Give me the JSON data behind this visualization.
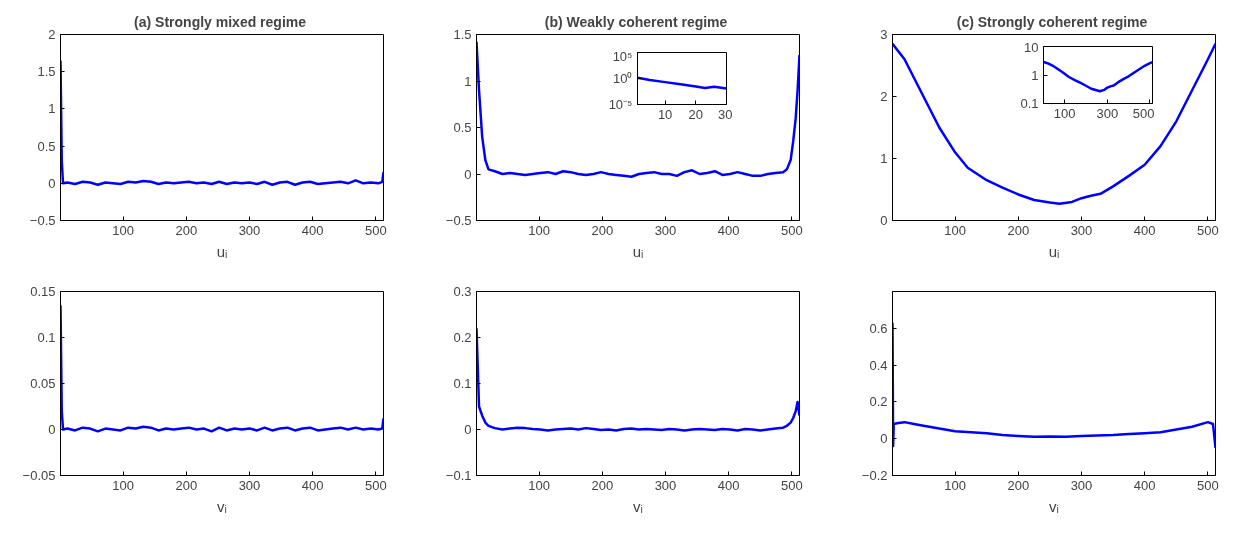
{
  "chart_data": [
    {
      "type": "line",
      "title": "(a)  Strongly mixed regime",
      "xlabel": "uᵢ",
      "xlim": [
        1,
        512
      ],
      "xticks": [
        100,
        200,
        300,
        400,
        500
      ],
      "ylim": [
        -0.5,
        2
      ],
      "yticks": [
        {
          "value": -0.5,
          "label": "−0.5"
        },
        0,
        0.5,
        1,
        1.5,
        2
      ],
      "grid": false,
      "line_style": "solid",
      "series": [
        {
          "color": "#0000ff",
          "x": [
            1,
            3,
            5,
            12,
            24,
            36,
            48,
            60,
            72,
            84,
            96,
            108,
            120,
            132,
            144,
            156,
            168,
            180,
            192,
            204,
            216,
            228,
            240,
            252,
            264,
            276,
            288,
            300,
            312,
            324,
            336,
            348,
            360,
            372,
            384,
            396,
            408,
            420,
            432,
            444,
            456,
            468,
            480,
            492,
            504,
            510,
            512
          ],
          "values": [
            1.65,
            0.3,
            0.0,
            0.01,
            -0.01,
            0.02,
            0.01,
            -0.02,
            0.01,
            0.0,
            -0.01,
            0.02,
            0.01,
            0.03,
            0.02,
            -0.01,
            0.01,
            0.0,
            0.01,
            0.02,
            0.0,
            0.01,
            -0.01,
            0.02,
            -0.01,
            0.01,
            0.0,
            0.01,
            -0.01,
            0.02,
            -0.02,
            0.01,
            0.02,
            -0.02,
            0.01,
            0.02,
            -0.01,
            0.0,
            0.01,
            0.02,
            0.0,
            0.04,
            0.0,
            0.01,
            0.0,
            0.02,
            0.15
          ]
        }
      ]
    },
    {
      "type": "line",
      "title": "(b)  Weakly coherent regime",
      "xlabel": "uᵢ",
      "xlim": [
        1,
        512
      ],
      "xticks": [
        100,
        200,
        300,
        400,
        500
      ],
      "ylim": [
        -0.5,
        1.5
      ],
      "yticks": [
        {
          "value": -0.5,
          "label": "−0.5"
        },
        0,
        0.5,
        1,
        1.5
      ],
      "grid": false,
      "line_style": "solid",
      "series": [
        {
          "color": "#0000ff",
          "x": [
            1,
            5,
            10,
            15,
            20,
            30,
            42,
            54,
            66,
            78,
            90,
            102,
            114,
            126,
            138,
            150,
            162,
            174,
            186,
            198,
            210,
            222,
            234,
            246,
            258,
            270,
            282,
            294,
            306,
            318,
            330,
            342,
            354,
            366,
            378,
            390,
            402,
            414,
            426,
            438,
            450,
            462,
            474,
            486,
            492,
            498,
            502,
            506,
            509,
            512
          ],
          "values": [
            1.42,
            0.9,
            0.4,
            0.15,
            0.05,
            0.03,
            0.0,
            0.01,
            0.0,
            -0.01,
            0.0,
            0.01,
            0.02,
            0.0,
            0.03,
            0.02,
            0.0,
            -0.01,
            0.0,
            0.02,
            0.0,
            -0.01,
            -0.02,
            -0.03,
            0.0,
            0.01,
            0.02,
            0.0,
            0.0,
            -0.02,
            0.02,
            0.04,
            0.0,
            0.01,
            0.03,
            -0.01,
            0.0,
            0.02,
            0.0,
            -0.02,
            -0.02,
            0.0,
            0.01,
            0.02,
            0.05,
            0.15,
            0.35,
            0.6,
            0.9,
            1.28
          ]
        }
      ]
    },
    {
      "type": "line",
      "xlim": [
        1,
        30
      ],
      "xticks": [
        10,
        20,
        30
      ],
      "ylim": [
        1e-05,
        100000
      ],
      "yticks": [
        {
          "value": 100000,
          "label": "10⁵"
        },
        {
          "value": 1,
          "label": "10⁰"
        },
        {
          "value": 1e-05,
          "label": "10⁻⁵"
        }
      ],
      "log": "y",
      "grid": false,
      "line_style": "solid",
      "series": [
        {
          "color": "#0000ff",
          "x": [
            1,
            5,
            10,
            15,
            20,
            23,
            26,
            30
          ],
          "values": [
            1.4,
            0.5,
            0.2,
            0.08,
            0.03,
            0.015,
            0.025,
            0.012
          ]
        }
      ]
    },
    {
      "type": "line",
      "title": "(c)  Strongly coherent regime",
      "xlabel": "uᵢ",
      "xlim": [
        1,
        512
      ],
      "xticks": [
        100,
        200,
        300,
        400,
        500
      ],
      "ylim": [
        0,
        3
      ],
      "yticks": [
        0,
        1,
        2,
        3
      ],
      "grid": false,
      "line_style": "solid",
      "series": [
        {
          "color": "#0000ff",
          "x": [
            1,
            20,
            50,
            75,
            100,
            120,
            150,
            175,
            200,
            225,
            250,
            265,
            285,
            300,
            315,
            330,
            350,
            375,
            400,
            425,
            450,
            475,
            500,
            512
          ],
          "values": [
            2.85,
            2.6,
            2.0,
            1.5,
            1.1,
            0.85,
            0.65,
            0.53,
            0.42,
            0.33,
            0.29,
            0.27,
            0.3,
            0.36,
            0.4,
            0.43,
            0.55,
            0.72,
            0.9,
            1.2,
            1.6,
            2.1,
            2.6,
            2.85
          ]
        }
      ]
    },
    {
      "type": "line",
      "xlim": [
        1,
        512
      ],
      "xticks": [
        100,
        300,
        500
      ],
      "ylim": [
        0.1,
        10
      ],
      "yticks": [
        0.1,
        1,
        10
      ],
      "log": "y",
      "grid": false,
      "line_style": "solid",
      "series": [
        {
          "color": "#0000ff",
          "x": [
            1,
            20,
            50,
            75,
            100,
            120,
            150,
            175,
            200,
            225,
            250,
            265,
            285,
            300,
            315,
            330,
            350,
            375,
            400,
            425,
            450,
            475,
            500,
            512
          ],
          "values": [
            2.85,
            2.6,
            2.0,
            1.5,
            1.1,
            0.85,
            0.65,
            0.53,
            0.42,
            0.33,
            0.29,
            0.27,
            0.3,
            0.36,
            0.4,
            0.43,
            0.55,
            0.72,
            0.9,
            1.2,
            1.6,
            2.1,
            2.6,
            2.85
          ]
        }
      ]
    },
    {
      "type": "line",
      "xlabel": "vᵢ",
      "xlim": [
        1,
        512
      ],
      "xticks": [
        100,
        200,
        300,
        400,
        500
      ],
      "ylim": [
        -0.05,
        0.15
      ],
      "yticks": [
        {
          "value": -0.05,
          "label": "−0.05"
        },
        0,
        0.05,
        0.1,
        0.15
      ],
      "grid": false,
      "line_style": "solid",
      "series": [
        {
          "color": "#0000ff",
          "x": [
            1,
            3,
            5,
            12,
            24,
            36,
            48,
            60,
            72,
            84,
            96,
            108,
            120,
            132,
            144,
            156,
            168,
            180,
            192,
            204,
            216,
            228,
            240,
            252,
            264,
            276,
            288,
            300,
            312,
            324,
            336,
            348,
            360,
            372,
            384,
            396,
            408,
            420,
            432,
            444,
            456,
            468,
            480,
            492,
            504,
            510,
            512
          ],
          "values": [
            0.135,
            0.02,
            0.0,
            0.001,
            -0.001,
            0.002,
            0.001,
            -0.002,
            0.001,
            0.0,
            -0.001,
            0.002,
            0.001,
            0.003,
            0.002,
            -0.001,
            0.001,
            0.0,
            0.001,
            0.002,
            0.0,
            0.001,
            -0.002,
            0.002,
            -0.001,
            0.001,
            0.0,
            0.001,
            -0.001,
            0.002,
            -0.001,
            0.001,
            0.002,
            -0.001,
            0.001,
            0.002,
            -0.001,
            0.0,
            0.001,
            0.002,
            0.0,
            0.002,
            0.0,
            0.001,
            0.0,
            0.001,
            0.012
          ]
        }
      ]
    },
    {
      "type": "line",
      "xlabel": "vᵢ",
      "xlim": [
        1,
        512
      ],
      "xticks": [
        100,
        200,
        300,
        400,
        500
      ],
      "ylim": [
        -0.1,
        0.3
      ],
      "yticks": [
        {
          "value": -0.1,
          "label": "−0.1"
        },
        0,
        0.1,
        0.2,
        0.3
      ],
      "grid": false,
      "line_style": "solid",
      "series": [
        {
          "color": "#0000ff",
          "x": [
            1,
            5,
            10,
            15,
            20,
            30,
            42,
            54,
            66,
            78,
            90,
            102,
            114,
            126,
            138,
            150,
            162,
            174,
            186,
            198,
            210,
            222,
            234,
            246,
            258,
            270,
            282,
            294,
            306,
            318,
            330,
            342,
            354,
            366,
            378,
            390,
            402,
            414,
            426,
            438,
            450,
            462,
            474,
            486,
            492,
            498,
            502,
            506,
            509,
            512
          ],
          "values": [
            0.22,
            0.05,
            0.03,
            0.015,
            0.008,
            0.003,
            0.0,
            0.002,
            0.004,
            0.003,
            0.001,
            0.0,
            -0.002,
            0.0,
            0.001,
            0.002,
            0.0,
            0.003,
            0.001,
            -0.001,
            0.0,
            -0.002,
            0.001,
            0.002,
            0.0,
            0.001,
            0.0,
            -0.001,
            0.001,
            0.0,
            -0.002,
            0.0,
            0.001,
            0.0,
            -0.001,
            0.001,
            0.0,
            -0.002,
            0.001,
            0.0,
            -0.002,
            0.0,
            0.002,
            0.004,
            0.008,
            0.015,
            0.025,
            0.04,
            0.06,
            0.03
          ]
        }
      ]
    },
    {
      "type": "line",
      "xlabel": "vᵢ",
      "xlim": [
        1,
        512
      ],
      "xticks": [
        100,
        200,
        300,
        400,
        500
      ],
      "ylim": [
        -0.2,
        0.8
      ],
      "yticks": [
        {
          "value": -0.2,
          "label": "−0.2"
        },
        0,
        0.2,
        0.4,
        0.6
      ],
      "grid": false,
      "line_style": "solid",
      "series": [
        {
          "color": "#0000ff",
          "x": [
            1,
            2,
            3,
            10,
            20,
            35,
            50,
            75,
            100,
            125,
            150,
            175,
            200,
            225,
            250,
            275,
            300,
            325,
            350,
            375,
            400,
            425,
            450,
            475,
            500,
            508,
            512
          ],
          "values": [
            0.63,
            -0.04,
            0.08,
            0.085,
            0.09,
            0.08,
            0.07,
            0.055,
            0.04,
            0.035,
            0.03,
            0.02,
            0.015,
            0.01,
            0.012,
            0.01,
            0.015,
            0.018,
            0.02,
            0.025,
            0.03,
            0.035,
            0.05,
            0.065,
            0.09,
            0.08,
            -0.05
          ]
        }
      ]
    }
  ]
}
